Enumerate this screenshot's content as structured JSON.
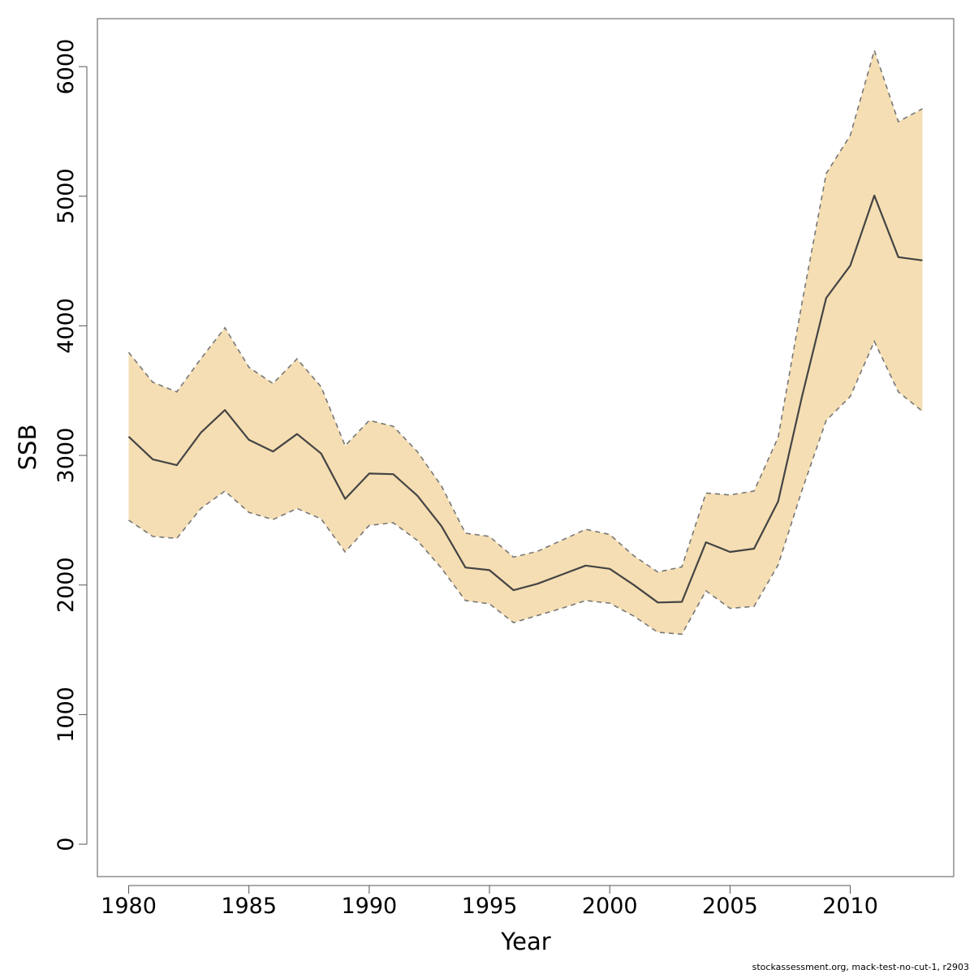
{
  "chart_data": {
    "type": "line",
    "xlabel": "Year",
    "ylabel": "SSB",
    "xlim": [
      1978.7,
      2014.3
    ],
    "ylim": [
      -250,
      6370
    ],
    "x_ticks": [
      1980,
      1985,
      1990,
      1995,
      2000,
      2005,
      2010
    ],
    "y_ticks": [
      0,
      1000,
      2000,
      3000,
      4000,
      5000,
      6000
    ],
    "grid": false,
    "legend": "none",
    "colors": {
      "band_fill": "#F5DEB3",
      "band_edge": "#777777",
      "line": "#444444"
    },
    "x": [
      1980,
      1981,
      1982,
      1983,
      1984,
      1985,
      1986,
      1987,
      1988,
      1989,
      1990,
      1991,
      1992,
      1993,
      1994,
      1995,
      1996,
      1997,
      1998,
      1999,
      2000,
      2001,
      2002,
      2003,
      2004,
      2005,
      2006,
      2007,
      2008,
      2009,
      2010,
      2011,
      2012,
      2013
    ],
    "series": [
      {
        "role": "estimate",
        "values": [
          3145,
          2970,
          2925,
          3175,
          3350,
          3120,
          3030,
          3165,
          3015,
          2665,
          2860,
          2855,
          2690,
          2455,
          2135,
          2115,
          1960,
          2010,
          2080,
          2150,
          2125,
          2000,
          1865,
          1870,
          2330,
          2255,
          2280,
          2645,
          3460,
          4215,
          4465,
          5005,
          4530,
          4505
        ]
      },
      {
        "role": "upper",
        "values": [
          3795,
          3565,
          3490,
          3745,
          3985,
          3680,
          3555,
          3745,
          3530,
          3075,
          3270,
          3225,
          3030,
          2765,
          2400,
          2375,
          2215,
          2260,
          2345,
          2430,
          2390,
          2225,
          2100,
          2140,
          2710,
          2695,
          2725,
          3140,
          4185,
          5175,
          5470,
          6125,
          5575,
          5675
        ]
      },
      {
        "role": "lower",
        "values": [
          2500,
          2375,
          2360,
          2590,
          2725,
          2560,
          2505,
          2590,
          2510,
          2255,
          2460,
          2480,
          2345,
          2130,
          1880,
          1855,
          1710,
          1765,
          1820,
          1880,
          1860,
          1760,
          1635,
          1620,
          1955,
          1820,
          1835,
          2155,
          2735,
          3270,
          3455,
          3880,
          3490,
          3340
        ]
      }
    ]
  },
  "footer": {
    "credit": "stockassessment.org, mack-test-no-cut-1, r2903"
  }
}
